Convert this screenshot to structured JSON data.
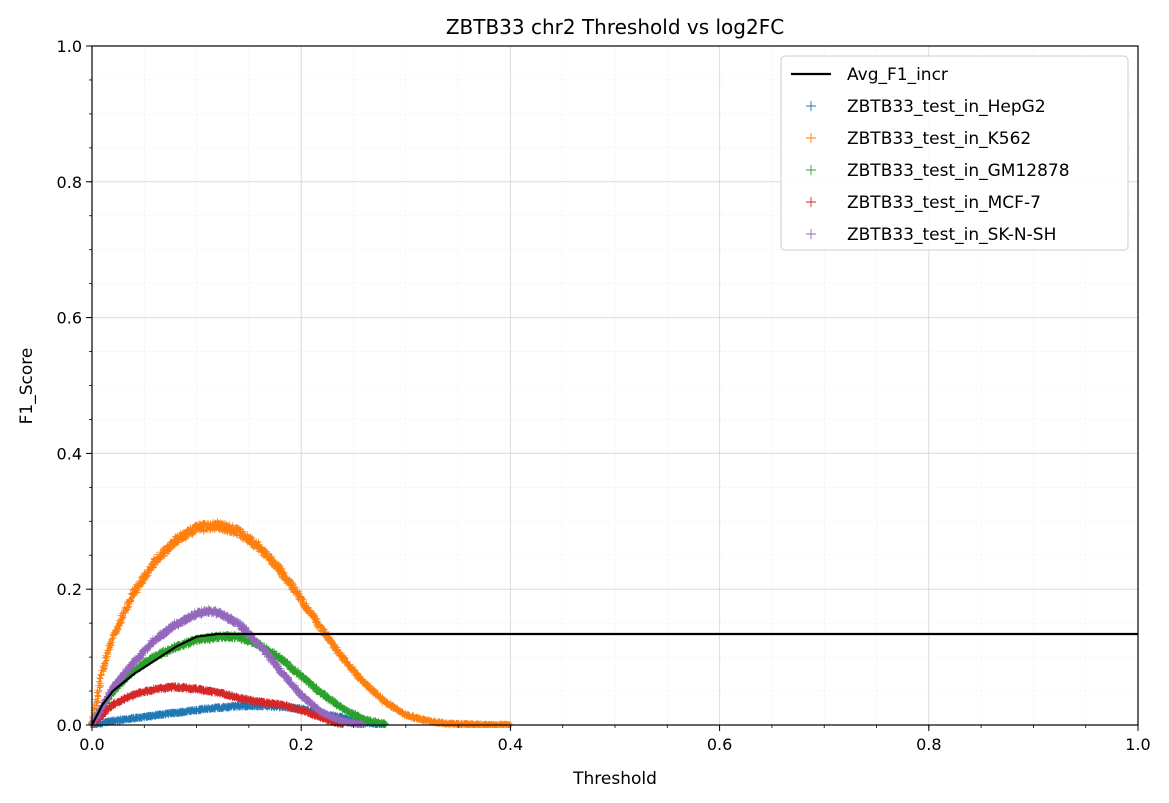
{
  "chart_data": {
    "type": "scatter",
    "title": "ZBTB33 chr2 Threshold vs log2FC",
    "xlabel": "Threshold",
    "ylabel": "F1_Score",
    "xlim": [
      0.0,
      1.0
    ],
    "ylim": [
      0.0,
      1.0
    ],
    "x_ticks": [
      "0.0",
      "0.2",
      "0.4",
      "0.6",
      "0.8",
      "1.0"
    ],
    "y_ticks": [
      "0.0",
      "0.2",
      "0.4",
      "0.6",
      "0.8",
      "1.0"
    ],
    "grid": true,
    "minor_grid": true,
    "legend_position": "top-right",
    "line": {
      "name": "Avg_F1_incr",
      "color": "#000000",
      "x": [
        0.0,
        0.01,
        0.02,
        0.04,
        0.06,
        0.08,
        0.1,
        0.12,
        1.0
      ],
      "y": [
        0.0,
        0.03,
        0.05,
        0.075,
        0.095,
        0.115,
        0.13,
        0.134,
        0.134
      ]
    },
    "series": [
      {
        "name": "ZBTB33_test_in_HepG2",
        "color": "#1f77b4",
        "x": [
          0.0,
          0.02,
          0.05,
          0.08,
          0.11,
          0.14,
          0.17,
          0.2,
          0.23,
          0.26,
          0.28
        ],
        "y": [
          0.0,
          0.006,
          0.012,
          0.018,
          0.024,
          0.028,
          0.028,
          0.024,
          0.014,
          0.004,
          0.0
        ]
      },
      {
        "name": "ZBTB33_test_in_K562",
        "color": "#ff7f0e",
        "x": [
          0.0,
          0.01,
          0.02,
          0.04,
          0.06,
          0.08,
          0.1,
          0.12,
          0.14,
          0.16,
          0.18,
          0.2,
          0.22,
          0.24,
          0.26,
          0.28,
          0.3,
          0.32,
          0.34,
          0.36,
          0.38,
          0.4
        ],
        "y": [
          0.0,
          0.08,
          0.13,
          0.195,
          0.24,
          0.272,
          0.29,
          0.294,
          0.285,
          0.262,
          0.228,
          0.185,
          0.14,
          0.098,
          0.062,
          0.034,
          0.015,
          0.006,
          0.002,
          0.001,
          0.0,
          0.0
        ]
      },
      {
        "name": "ZBTB33_test_in_GM12878",
        "color": "#2ca02c",
        "x": [
          0.0,
          0.02,
          0.04,
          0.06,
          0.08,
          0.1,
          0.12,
          0.14,
          0.16,
          0.18,
          0.2,
          0.22,
          0.24,
          0.26,
          0.28
        ],
        "y": [
          0.0,
          0.05,
          0.08,
          0.1,
          0.115,
          0.125,
          0.13,
          0.13,
          0.118,
          0.098,
          0.072,
          0.046,
          0.024,
          0.008,
          0.002
        ]
      },
      {
        "name": "ZBTB33_test_in_MCF-7",
        "color": "#d62728",
        "x": [
          0.0,
          0.02,
          0.04,
          0.06,
          0.08,
          0.1,
          0.12,
          0.14,
          0.16,
          0.18,
          0.2,
          0.22,
          0.24
        ],
        "y": [
          0.0,
          0.03,
          0.045,
          0.053,
          0.056,
          0.053,
          0.048,
          0.04,
          0.034,
          0.03,
          0.022,
          0.01,
          0.0
        ]
      },
      {
        "name": "ZBTB33_test_in_SK-N-SH",
        "color": "#9467bd",
        "x": [
          0.0,
          0.02,
          0.04,
          0.06,
          0.08,
          0.1,
          0.11,
          0.12,
          0.14,
          0.16,
          0.18,
          0.2,
          0.22,
          0.24,
          0.26
        ],
        "y": [
          0.0,
          0.055,
          0.092,
          0.125,
          0.148,
          0.164,
          0.168,
          0.166,
          0.15,
          0.118,
          0.08,
          0.044,
          0.018,
          0.005,
          0.0
        ]
      }
    ]
  }
}
